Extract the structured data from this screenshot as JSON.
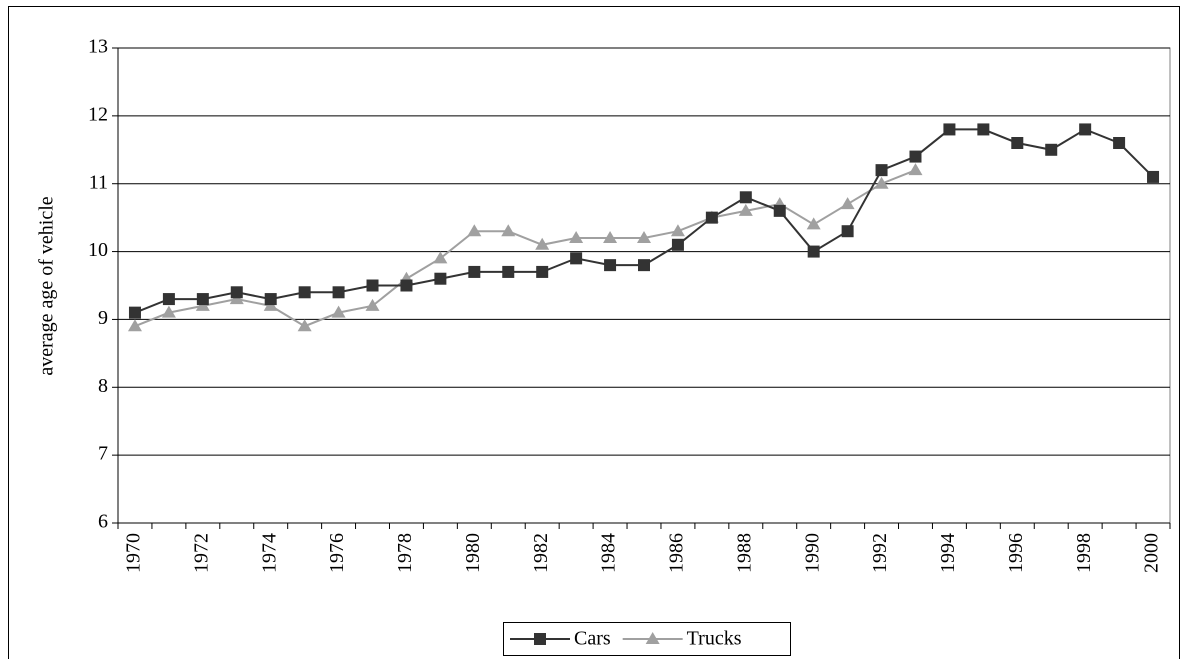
{
  "chart_data": {
    "type": "line",
    "y_label": "average age of vehicle",
    "categories": [
      "1970",
      null,
      "1972",
      null,
      "1974",
      null,
      "1976",
      null,
      "1978",
      null,
      "1980",
      null,
      "1982",
      null,
      "1984",
      null,
      "1986",
      null,
      "1988",
      null,
      "1990",
      null,
      "1992",
      null,
      "1994",
      null,
      "1996",
      null,
      "1998",
      null,
      "2000"
    ],
    "series": [
      {
        "name": "Cars",
        "color": "#333333",
        "marker": "square",
        "values": [
          9.1,
          9.3,
          9.3,
          9.4,
          9.3,
          9.4,
          9.4,
          9.5,
          9.5,
          9.6,
          9.7,
          9.7,
          9.7,
          9.9,
          9.8,
          9.8,
          10.1,
          10.5,
          10.8,
          10.6,
          10.0,
          10.3,
          11.2,
          11.4,
          11.8,
          11.8,
          11.6,
          11.5,
          11.8,
          11.6,
          11.1
        ]
      },
      {
        "name": "Trucks",
        "color": "#a0a0a0",
        "marker": "triangle",
        "values": [
          8.9,
          9.1,
          9.2,
          9.3,
          9.2,
          8.9,
          9.1,
          9.2,
          9.6,
          9.9,
          10.3,
          10.3,
          10.1,
          10.2,
          10.2,
          10.2,
          10.3,
          10.5,
          10.6,
          10.7,
          10.4,
          10.7,
          11.0,
          11.2,
          null,
          null,
          null,
          null,
          null,
          null,
          null
        ]
      }
    ],
    "ylim": [
      6,
      13
    ],
    "yticks": [
      6,
      7,
      8,
      9,
      10,
      11,
      12,
      13
    ],
    "grid": true,
    "legend": "bottom"
  }
}
